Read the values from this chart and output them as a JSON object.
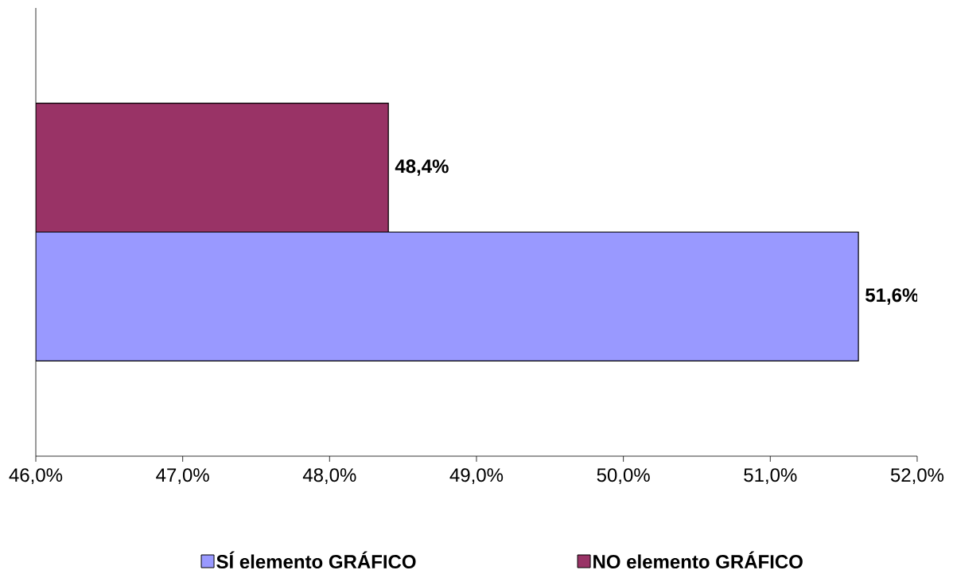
{
  "chart_data": {
    "type": "bar",
    "orientation": "horizontal",
    "categories": [
      null
    ],
    "series": [
      {
        "name": "SÍ elemento GRÁFICO",
        "color": "#9999ff",
        "values": [
          51.6
        ],
        "value_labels": [
          "51,6%"
        ]
      },
      {
        "name": "NO elemento GRÁFICO",
        "color": "#993366",
        "values": [
          48.4
        ],
        "value_labels": [
          "48,4%"
        ]
      }
    ],
    "xlim": [
      46,
      52
    ],
    "xticks": [
      {
        "value": 46,
        "label": "46,0%"
      },
      {
        "value": 47,
        "label": "47,0%"
      },
      {
        "value": 48,
        "label": "48,0%"
      },
      {
        "value": 49,
        "label": "49,0%"
      },
      {
        "value": 50,
        "label": "50,0%"
      },
      {
        "value": 51,
        "label": "51,0%"
      },
      {
        "value": 52,
        "label": "52,0%"
      }
    ],
    "legend": "bottom"
  }
}
